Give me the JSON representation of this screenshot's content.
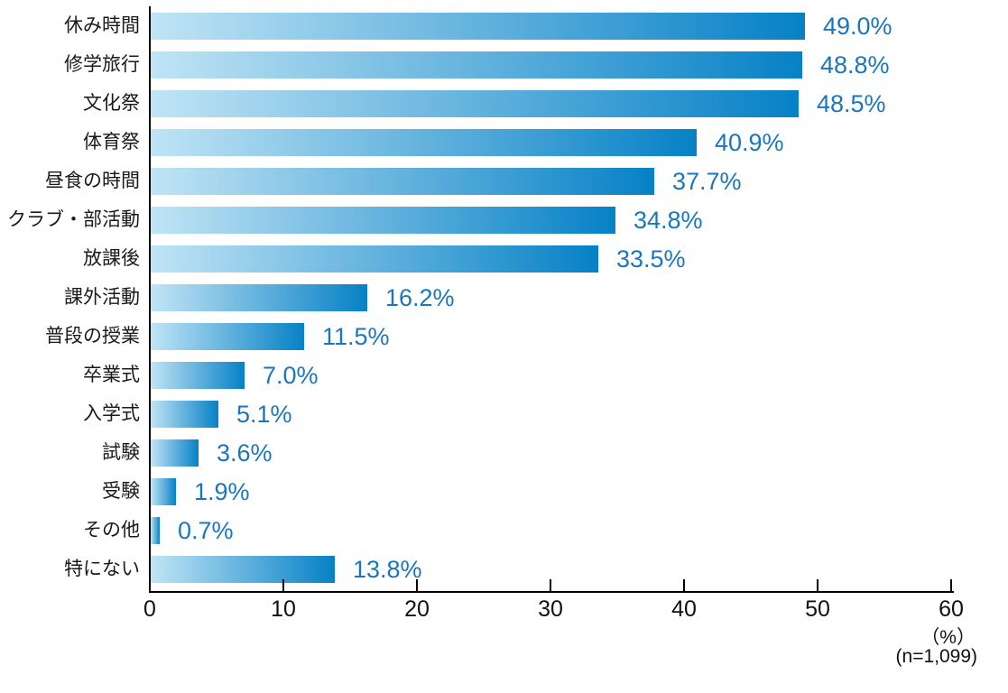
{
  "chart_data": {
    "type": "bar",
    "orientation": "horizontal",
    "title": "",
    "categories": [
      "休み時間",
      "修学旅行",
      "文化祭",
      "体育祭",
      "昼食の時間",
      "クラブ・部活動",
      "放課後",
      "課外活動",
      "普段の授業",
      "卒業式",
      "入学式",
      "試験",
      "受験",
      "その他",
      "特にない"
    ],
    "values": [
      49.0,
      48.8,
      48.5,
      40.9,
      37.7,
      34.8,
      33.5,
      16.2,
      11.5,
      7.0,
      5.1,
      3.6,
      1.9,
      0.7,
      13.8
    ],
    "value_labels": [
      "49.0%",
      "48.8%",
      "48.5%",
      "40.9%",
      "37.7%",
      "34.8%",
      "33.5%",
      "16.2%",
      "11.5%",
      "7.0%",
      "5.1%",
      "3.6%",
      "1.9%",
      "0.7%",
      "13.8%"
    ],
    "xlim": [
      0,
      60
    ],
    "x_ticks": [
      0,
      10,
      20,
      30,
      40,
      50,
      60
    ],
    "x_tick_labels": [
      "0",
      "10",
      "20",
      "30",
      "40",
      "50",
      "60"
    ],
    "x_unit_label": "（%）",
    "sample_size_label": "(n=1,099)",
    "grid": false,
    "legend": false,
    "colors": {
      "bar_gradient_start": "#C0E4F5",
      "bar_gradient_end": "#0681C6",
      "value_label": "#1B76BD",
      "category_label": "#1A1A1A",
      "axis": "#000000",
      "background": "#FFFFFF"
    }
  }
}
